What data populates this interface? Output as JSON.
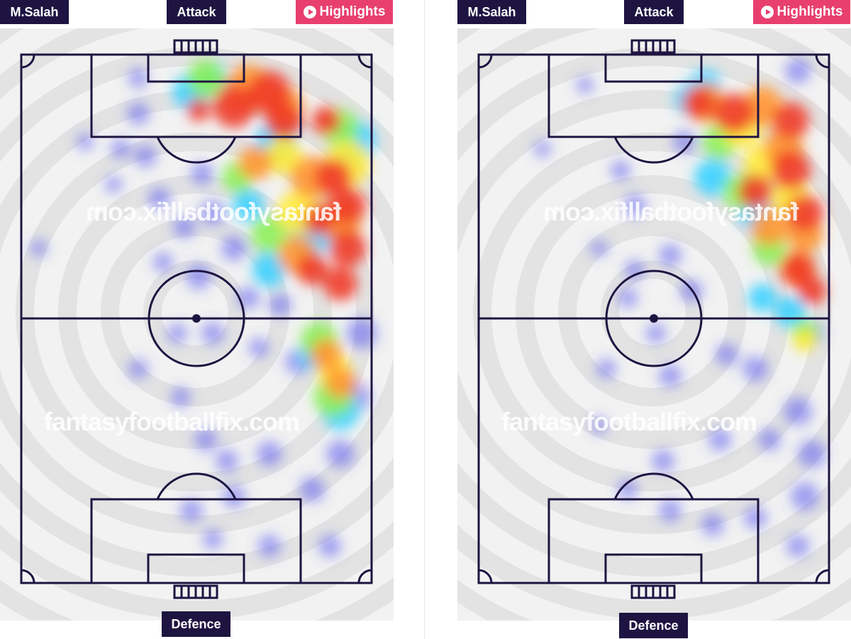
{
  "panels": [
    {
      "player_name": "M.Salah",
      "top_label": "Attack",
      "bottom_label": "Defence",
      "highlights_label": "Highlights",
      "watermark_top": "fantasyfootballfix.com",
      "watermark_bottom": "fantasyfootballfix.com",
      "heat_color_scale": [
        "#5a5af0",
        "#3cd2ff",
        "#8cf05a",
        "#ffeb3c",
        "#ff9632",
        "#f03c28"
      ]
    },
    {
      "player_name": "M.Salah",
      "top_label": "Attack",
      "bottom_label": "Defence",
      "highlights_label": "Highlights",
      "watermark_top": "fantasyfootballfix.com",
      "watermark_bottom": "fantasyfootballfix.com",
      "heat_color_scale": [
        "#5a5af0",
        "#3cd2ff",
        "#8cf05a",
        "#ffeb3c",
        "#ff9632",
        "#f03c28"
      ]
    }
  ],
  "colors": {
    "label_dark": "#1e1441",
    "label_accent": "#e83f6f",
    "pitch_lines": "#1e1441",
    "pitch_background": "#f2f2f2"
  }
}
